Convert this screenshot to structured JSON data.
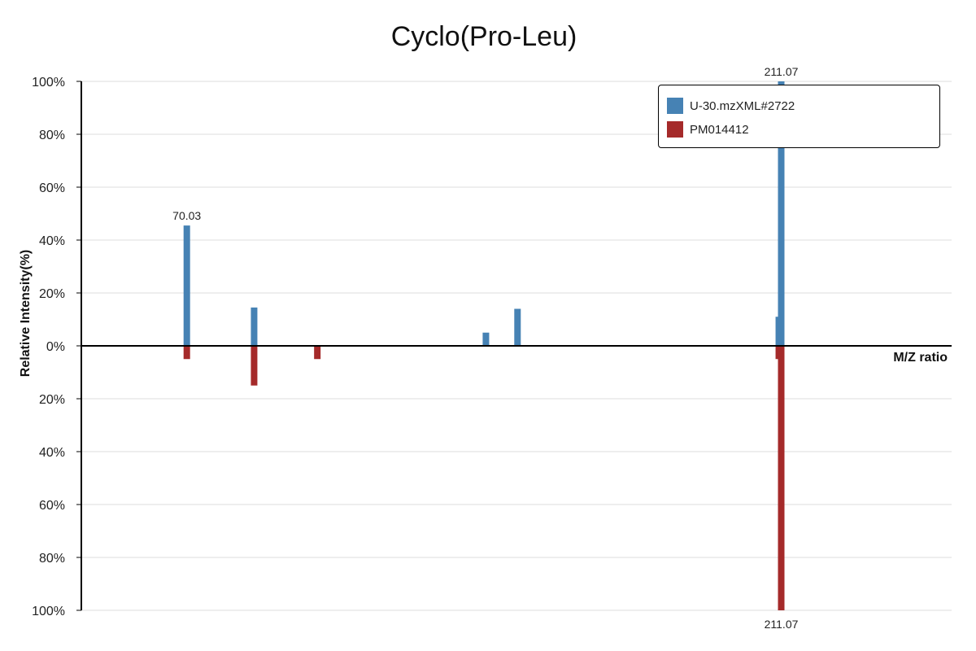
{
  "colors": {
    "query": "#4682b4",
    "reference": "#a52a2a",
    "grid": "#dddddd",
    "axis": "#000000"
  },
  "chart_data": {
    "type": "bar",
    "subtype": "mirror-mass-spectrum",
    "title": "Cyclo(Pro-Leu)",
    "xlabel": "M/Z ratio",
    "ylabel": "Relative Intensity(%)",
    "ylim_top": [
      0,
      100
    ],
    "ylim_bottom": [
      0,
      100
    ],
    "yticks_top": [
      "100%",
      "80%",
      "60%",
      "40%",
      "20%",
      "0%"
    ],
    "yticks_bottom": [
      "20%",
      "40%",
      "60%",
      "80%",
      "100%"
    ],
    "grid": true,
    "legend_position": "top-right",
    "series": [
      {
        "name": "U-30.mzXML#2722",
        "direction": "up",
        "peaks": [
          {
            "mz": 70.03,
            "intensity": 45.5,
            "label": "70.03"
          },
          {
            "mz": 86.0,
            "intensity": 14.5,
            "label": ""
          },
          {
            "mz": 141.0,
            "intensity": 5.0,
            "label": ""
          },
          {
            "mz": 148.5,
            "intensity": 14.0,
            "label": ""
          },
          {
            "mz": 210.5,
            "intensity": 11.0,
            "label": ""
          },
          {
            "mz": 211.07,
            "intensity": 100,
            "label": "211.07"
          }
        ]
      },
      {
        "name": "PM014412",
        "direction": "down",
        "peaks": [
          {
            "mz": 70.03,
            "intensity": 5.0,
            "label": ""
          },
          {
            "mz": 86.0,
            "intensity": 15.0,
            "label": ""
          },
          {
            "mz": 101.0,
            "intensity": 5.0,
            "label": ""
          },
          {
            "mz": 210.5,
            "intensity": 5.0,
            "label": ""
          },
          {
            "mz": 211.07,
            "intensity": 100,
            "label": "211.07"
          }
        ]
      }
    ]
  }
}
